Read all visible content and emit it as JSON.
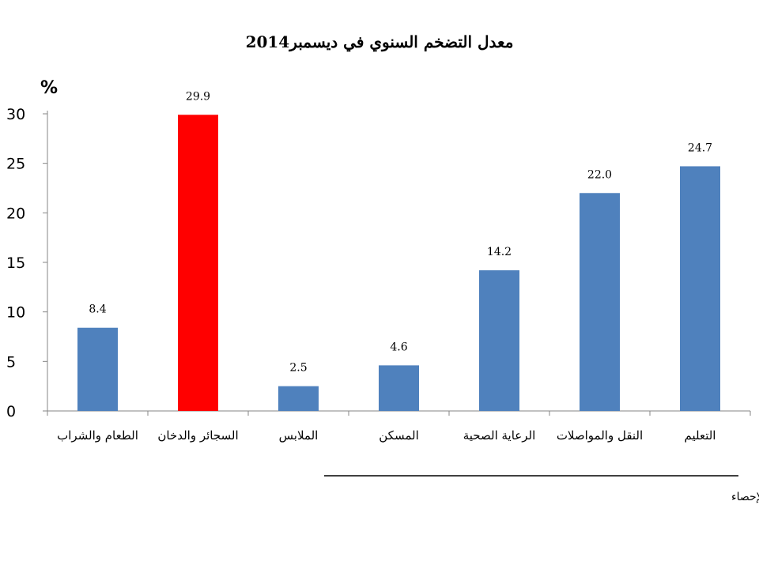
{
  "chart_data": {
    "type": "bar",
    "title": "معدل التضخم السنوي في ديسمبر2014",
    "ylabel": "%",
    "xlabel": "",
    "categories": [
      "الطعام والشراب",
      "السجائر والدخان",
      "الملابس",
      "المسكن",
      "الرعاية الصحية",
      "النقل والمواصلات",
      "التعليم"
    ],
    "values": [
      8.4,
      29.9,
      2.5,
      4.6,
      14.2,
      22.0,
      24.7
    ],
    "data_labels": [
      "8.4",
      "29.9",
      "2.5",
      "4.6",
      "14.2",
      "22.0",
      "24.7"
    ],
    "bar_colors": [
      "#4f81bd",
      "#ff0000",
      "#4f81bd",
      "#4f81bd",
      "#4f81bd",
      "#4f81bd",
      "#4f81bd"
    ],
    "ylim": [
      0,
      30
    ],
    "yticks": [
      0,
      5,
      10,
      15,
      20,
      25,
      30
    ],
    "ytick_labels": [
      "0",
      "5",
      "10",
      "15",
      "20",
      "25",
      "30"
    ],
    "grid": false,
    "legend": "none"
  },
  "source": "المصدر: الجهاز المركزي للتعبئة العامة والإحصاء"
}
